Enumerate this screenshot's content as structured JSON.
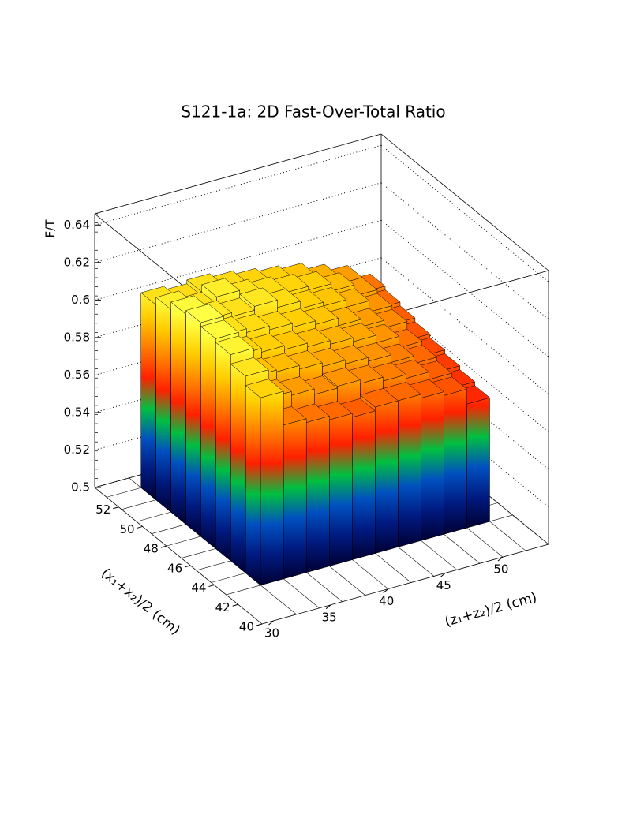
{
  "chart_data": {
    "type": "lego3d",
    "title": "S121-1a: 2D Fast-Over-Total Ratio",
    "ylabel": "F/T",
    "xlabel": "(x₁+x₂)/2 (cm)",
    "zlabel": "(z₁+z₂)/2 (cm)",
    "x_bins": [
      43,
      44.25,
      45.5,
      46.75,
      48,
      49.25,
      50.5,
      51.75,
      53
    ],
    "z_bins": [
      32,
      34,
      36,
      38,
      40,
      42,
      44,
      46,
      48,
      50,
      52
    ],
    "values": [
      [
        0.6,
        0.582,
        0.58,
        0.578,
        0.576,
        0.578,
        0.578,
        0.576,
        0.574,
        0.566
      ],
      [
        0.605,
        0.59,
        0.588,
        0.585,
        0.586,
        0.584,
        0.582,
        0.58,
        0.576,
        0.568
      ],
      [
        0.61,
        0.595,
        0.594,
        0.592,
        0.59,
        0.588,
        0.586,
        0.582,
        0.578,
        0.57
      ],
      [
        0.612,
        0.6,
        0.598,
        0.596,
        0.594,
        0.592,
        0.59,
        0.586,
        0.58,
        0.572
      ],
      [
        0.614,
        0.604,
        0.602,
        0.6,
        0.598,
        0.596,
        0.592,
        0.588,
        0.584,
        0.574
      ],
      [
        0.612,
        0.606,
        0.604,
        0.606,
        0.602,
        0.598,
        0.596,
        0.592,
        0.586,
        0.576
      ],
      [
        0.608,
        0.604,
        0.608,
        0.604,
        0.602,
        0.6,
        0.598,
        0.594,
        0.588,
        0.578
      ],
      [
        0.604,
        0.602,
        0.604,
        0.602,
        0.6,
        0.598,
        0.596,
        0.592,
        0.588,
        0.58
      ]
    ],
    "xlim": [
      40,
      54
    ],
    "zlim": [
      29,
      54
    ],
    "ylim": [
      0.5,
      0.646
    ],
    "xticks": [
      40,
      42,
      44,
      46,
      48,
      50,
      52
    ],
    "zticks": [
      30,
      35,
      40,
      45,
      50
    ],
    "yticks": [
      0.5,
      0.52,
      0.54,
      0.56,
      0.58,
      0.6,
      0.62,
      0.64
    ],
    "palette": [
      "#000033",
      "#001a80",
      "#0050c0",
      "#00c040",
      "#ff2000",
      "#ff7a00",
      "#ffcc00",
      "#ffff40",
      "#ffffd0",
      "#ffffff"
    ],
    "grid": true
  }
}
